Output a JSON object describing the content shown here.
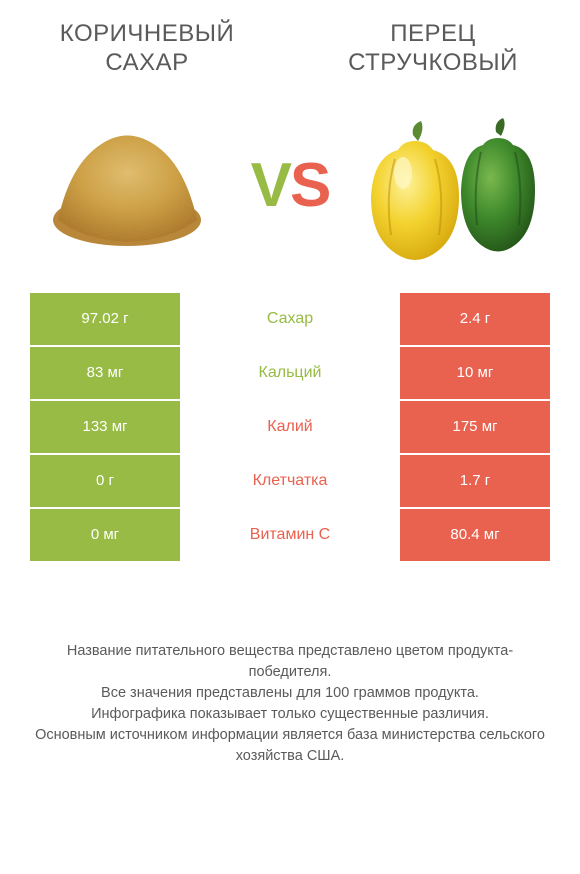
{
  "titles": {
    "left": "КОРИЧНЕВЫЙ САХАР",
    "right": "ПЕРЕЦ СТРУЧКОВЫЙ"
  },
  "vs": {
    "v": "V",
    "s": "S"
  },
  "colors": {
    "green": "#97bb44",
    "orange": "#e9614f",
    "text": "#5a5a5a",
    "background": "#ffffff"
  },
  "rows": [
    {
      "left": "97.02 г",
      "label": "Сахар",
      "right": "2.4 г",
      "winner": "left"
    },
    {
      "left": "83 мг",
      "label": "Кальций",
      "right": "10 мг",
      "winner": "left"
    },
    {
      "left": "133 мг",
      "label": "Калий",
      "right": "175 мг",
      "winner": "right"
    },
    {
      "left": "0 г",
      "label": "Клетчатка",
      "right": "1.7 г",
      "winner": "right"
    },
    {
      "left": "0 мг",
      "label": "Витамин C",
      "right": "80.4 мг",
      "winner": "right"
    }
  ],
  "footer": {
    "line1": "Название питательного вещества представлено цветом продукта-победителя.",
    "line2": "Все значения представлены для 100 граммов продукта.",
    "line3": "Инфографика показывает только существенные различия.",
    "line4": "Основным источником информации является база министерства сельского хозяйства США."
  }
}
